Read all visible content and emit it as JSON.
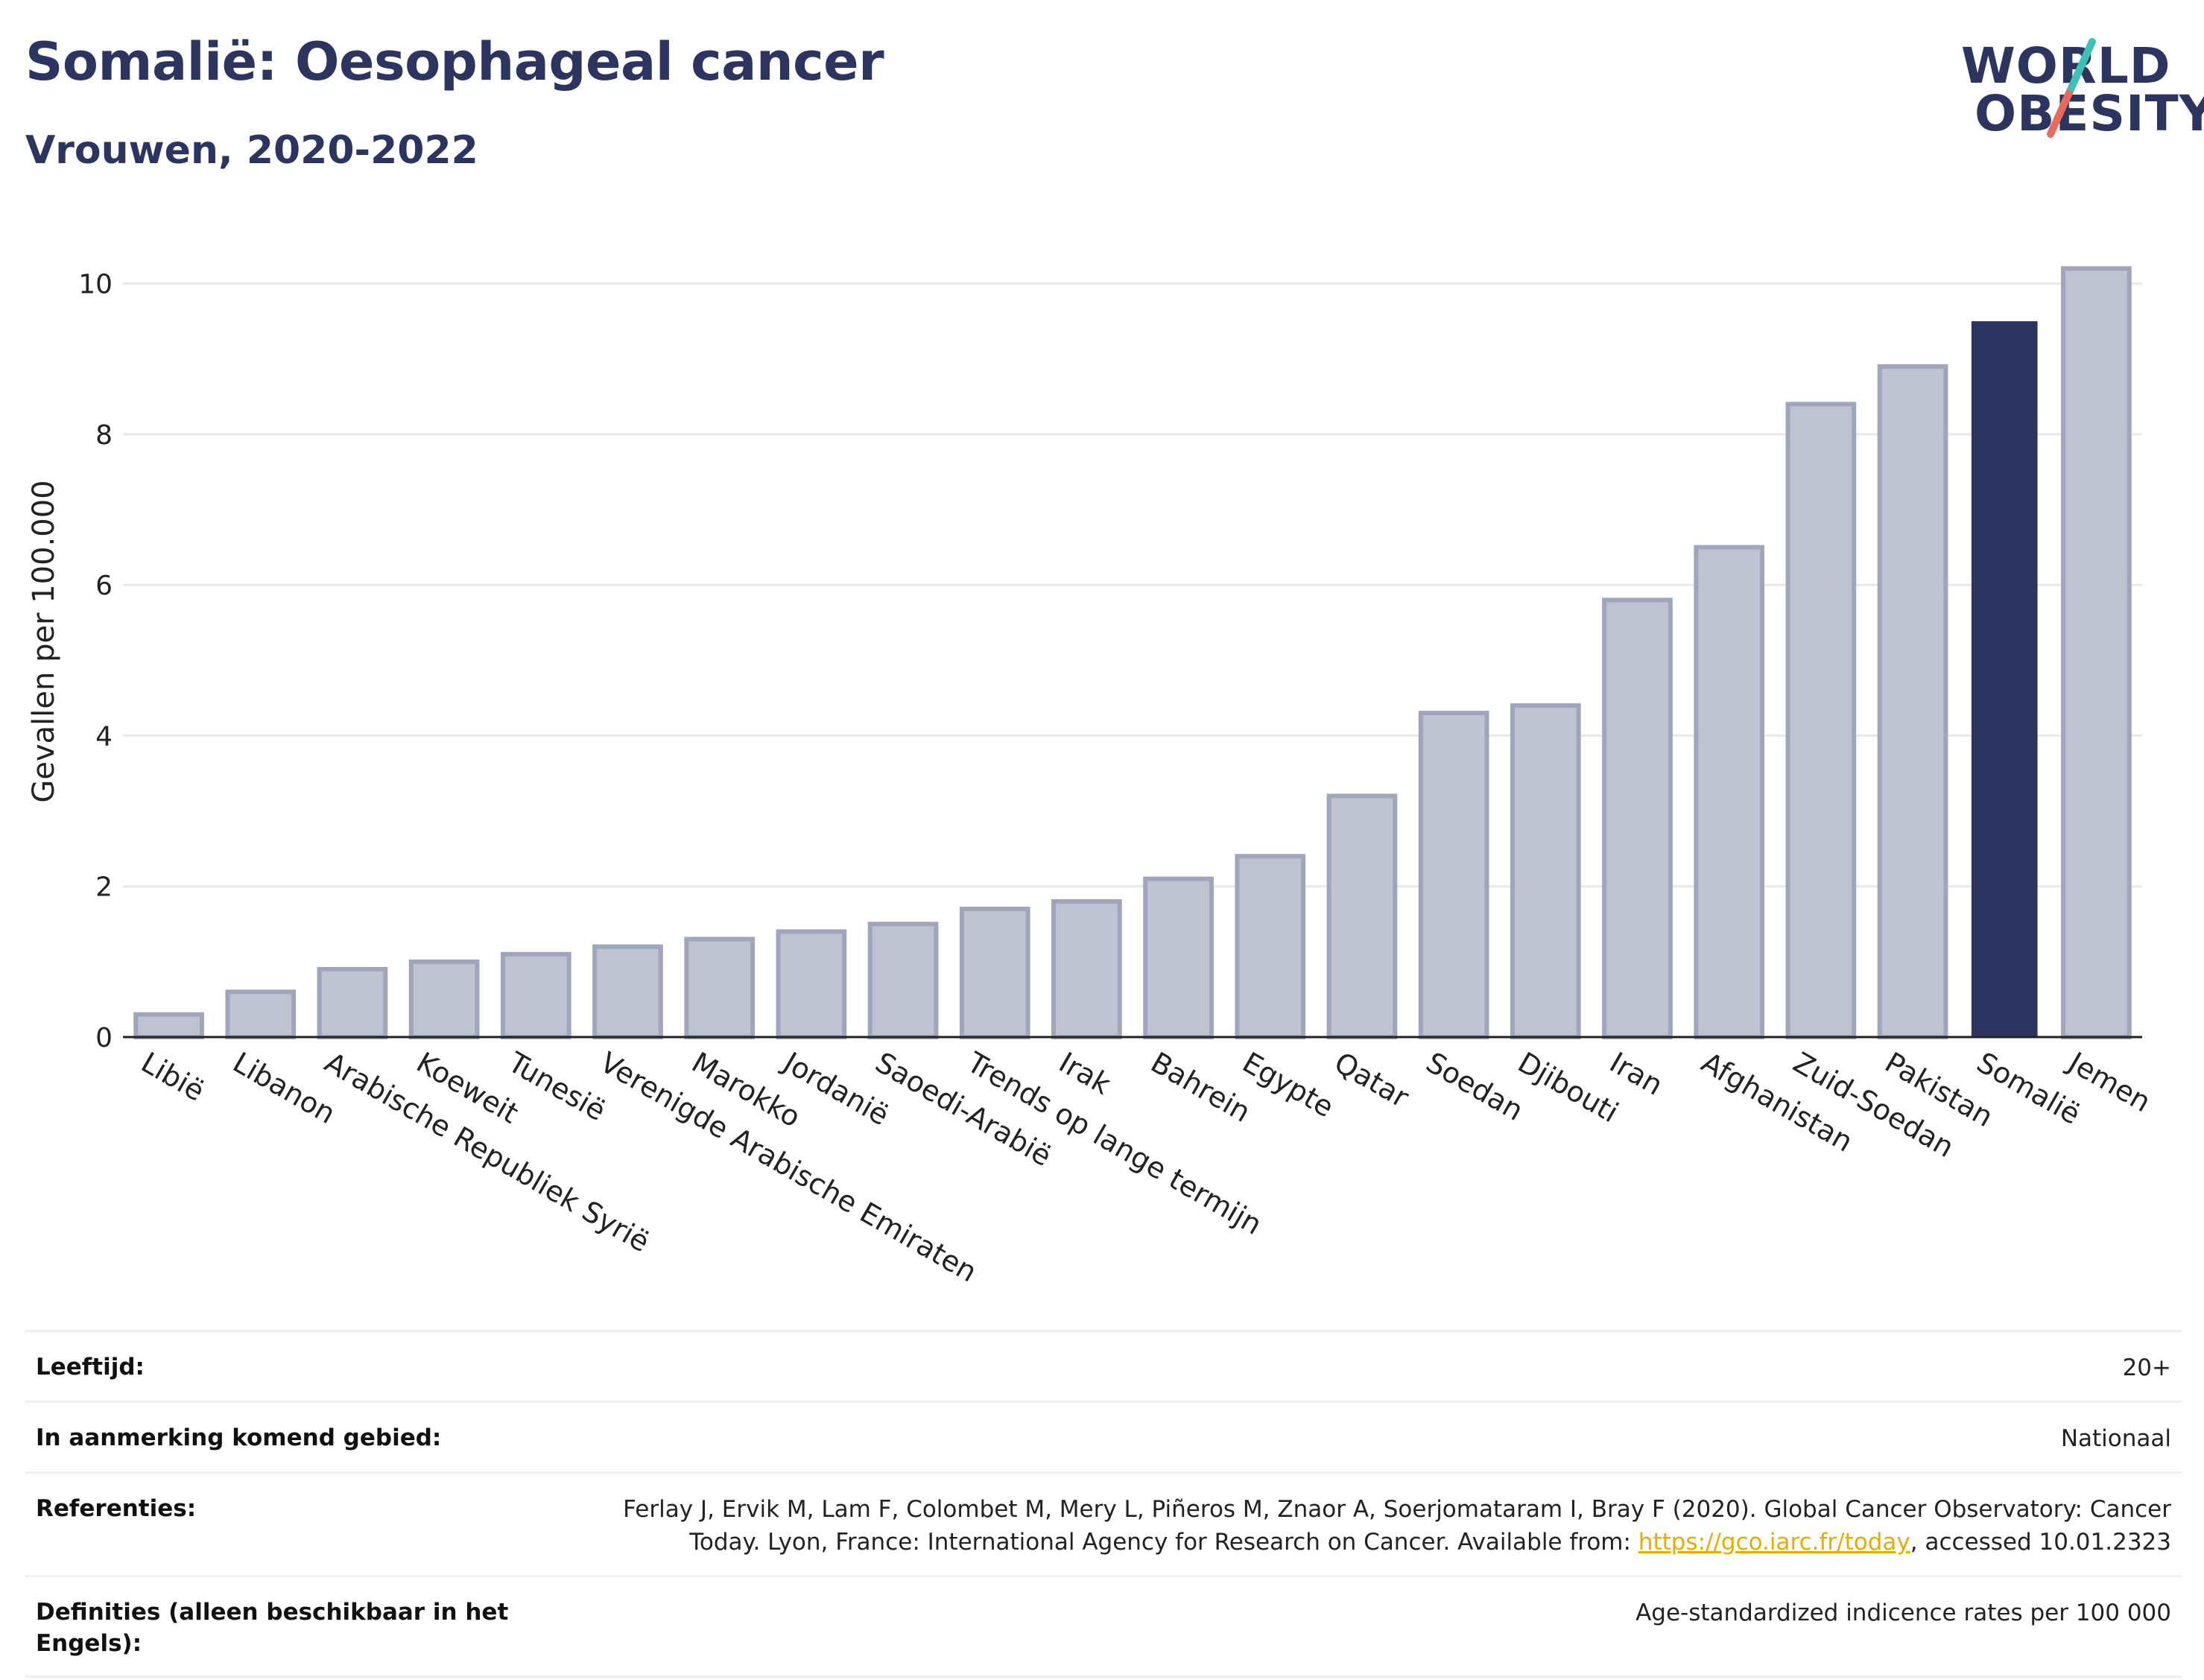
{
  "title": "Somalië: Oesophageal cancer",
  "subtitle": "Vrouwen, 2020-2022",
  "logo": {
    "line1": "WORLD",
    "line2": "OBESITY"
  },
  "colors": {
    "highlight": "#2c3560",
    "bar": "#bfc3d1",
    "bar_edge": "#9fa5bb",
    "logo_teal": "#3cc0b8",
    "logo_red": "#e96a5a",
    "link": "#e6ac00"
  },
  "chart_data": {
    "type": "bar",
    "title": "Somalië: Oesophageal cancer",
    "subtitle": "Vrouwen, 2020-2022",
    "ylabel": "Gevallen per 100.000",
    "xlabel": "",
    "ylim": [
      0,
      10.5
    ],
    "yticks": [
      0,
      2,
      4,
      6,
      8,
      10
    ],
    "grid": true,
    "highlight": "Somalië",
    "categories": [
      "Libië",
      "Libanon",
      "Arabische Republiek Syrië",
      "Koeweit",
      "Tunesië",
      "Verenigde Arabische Emiraten",
      "Marokko",
      "Jordanië",
      "Saoedi-Arabië",
      "Trends op lange termijn",
      "Irak",
      "Bahrein",
      "Egypte",
      "Qatar",
      "Soedan",
      "Djibouti",
      "Iran",
      "Afghanistan",
      "Zuid-Soedan",
      "Pakistan",
      "Somalië",
      "Jemen"
    ],
    "values": [
      0.3,
      0.6,
      0.9,
      1.0,
      1.1,
      1.2,
      1.3,
      1.4,
      1.5,
      1.7,
      1.8,
      2.1,
      2.4,
      3.2,
      4.3,
      4.4,
      5.8,
      6.5,
      8.4,
      8.9,
      9.5,
      10.2
    ]
  },
  "info": {
    "age_label": "Leeftijd:",
    "age_value": "20+",
    "area_label": "In aanmerking komend gebied:",
    "area_value": "Nationaal",
    "ref_label": "Referenties:",
    "ref_text_1": "Ferlay J, Ervik M, Lam F, Colombet M, Mery L, Piñeros M, Znaor A, Soerjomataram I, Bray F (2020). Global Cancer Observatory: Cancer",
    "ref_text_2": "Today. Lyon, France: International Agency for Research on Cancer. Available from: ",
    "ref_link": "https://gco.iarc.fr/today",
    "ref_text_3": ", accessed 10.01.2323",
    "def_label": "Definities (alleen beschikbaar in het Engels):",
    "def_value": "Age-standardized indicence rates per 100 000"
  }
}
